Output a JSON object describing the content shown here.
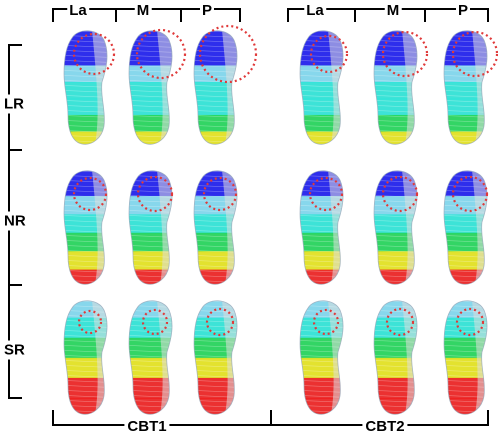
{
  "column_groups": [
    {
      "group": "CBT1",
      "columns": [
        "La",
        "M",
        "P"
      ]
    },
    {
      "group": "CBT2",
      "columns": [
        "La",
        "M",
        "P"
      ]
    }
  ],
  "rows": [
    "LR",
    "NR",
    "SR"
  ],
  "colors": {
    "bracket": "#000000",
    "circle": "#e03a3a",
    "blue": "#1d1df0",
    "lightblue": "#7fd8f0",
    "cyan": "#2ee6d8",
    "green": "#22d65a",
    "yellow": "#e6e41e",
    "orange": "#f08a1a",
    "red": "#ee2020",
    "gray": "#c8c8c8"
  }
}
